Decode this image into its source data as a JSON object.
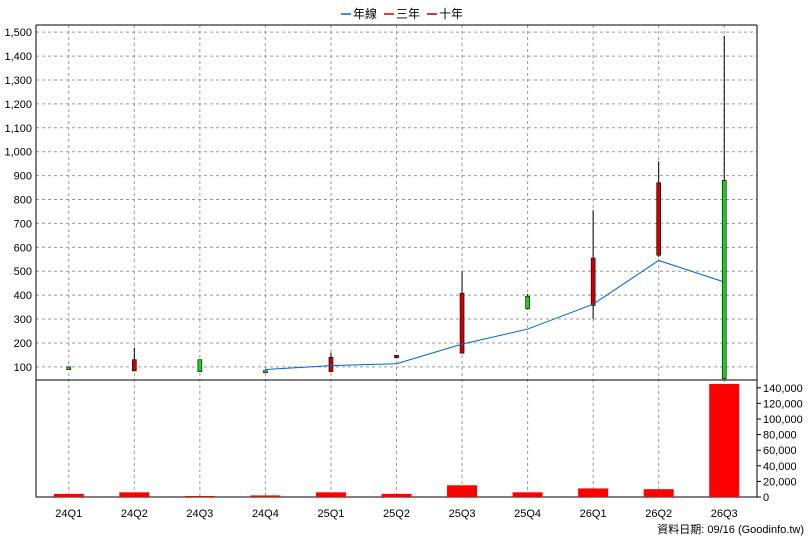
{
  "legend": [
    {
      "label": "年線",
      "color": "#0066cc"
    },
    {
      "label": "三年",
      "color": "#cc0000"
    },
    {
      "label": "十年",
      "color": "#990033"
    }
  ],
  "footer": "資料日期: 09/16  (Goodinfo.tw)",
  "chart_data": {
    "type": "candlestick",
    "categories": [
      "24Q1",
      "24Q2",
      "24Q3",
      "24Q4",
      "25Q1",
      "25Q2",
      "25Q3",
      "25Q4",
      "26Q1",
      "26Q2",
      "26Q3"
    ],
    "price_axis": {
      "ylim": [
        45,
        1530
      ],
      "ticks": [
        100,
        200,
        300,
        400,
        500,
        600,
        700,
        800,
        900,
        1000,
        1100,
        1200,
        1300,
        1400,
        1500
      ],
      "tick_labels": [
        "100",
        "200",
        "300",
        "400",
        "500",
        "600",
        "700",
        "800",
        "900",
        "1,000",
        "1,100",
        "1,200",
        "1,300",
        "1,400",
        "1,500"
      ]
    },
    "volume_axis": {
      "ylim": [
        0,
        150000
      ],
      "ticks": [
        0,
        20000,
        40000,
        60000,
        80000,
        100000,
        120000,
        140000
      ],
      "tick_labels": [
        "0",
        "20,000",
        "40,000",
        "60,000",
        "80,000",
        "100,000",
        "120,000",
        "140,000"
      ]
    },
    "candles": [
      {
        "open": 100,
        "close": 88,
        "high": 100,
        "low": 88,
        "up": false
      },
      {
        "open": 83,
        "close": 130,
        "high": 180,
        "low": 83,
        "up": true
      },
      {
        "open": 130,
        "close": 80,
        "high": 130,
        "low": 80,
        "up": false
      },
      {
        "open": 84,
        "close": 78,
        "high": 84,
        "low": 78,
        "up": false
      },
      {
        "open": 80,
        "close": 140,
        "high": 160,
        "low": 80,
        "up": true
      },
      {
        "open": 138,
        "close": 148,
        "high": 150,
        "low": 136,
        "up": true
      },
      {
        "open": 157,
        "close": 408,
        "high": 500,
        "low": 157,
        "up": true
      },
      {
        "open": 395,
        "close": 343,
        "high": 405,
        "low": 340,
        "up": false
      },
      {
        "open": 357,
        "close": 555,
        "high": 755,
        "low": 300,
        "up": true
      },
      {
        "open": 567,
        "close": 870,
        "high": 960,
        "low": 560,
        "up": true
      },
      {
        "open": 880,
        "close": 50,
        "high": 1485,
        "low": 50,
        "up": false
      }
    ],
    "ma_line": {
      "name": "年線",
      "start_index": 3,
      "values": [
        null,
        null,
        null,
        89,
        105,
        113,
        195,
        258,
        362,
        545,
        455
      ]
    },
    "volume": [
      4000,
      6000,
      600,
      2000,
      6000,
      4000,
      15000,
      6000,
      11000,
      10000,
      145000
    ],
    "colors": {
      "up": "#cc0000",
      "down": "#22cc22",
      "volume": "#ff0000",
      "ma": "#0066cc",
      "grid": "#999999",
      "axis": "#000000"
    }
  }
}
